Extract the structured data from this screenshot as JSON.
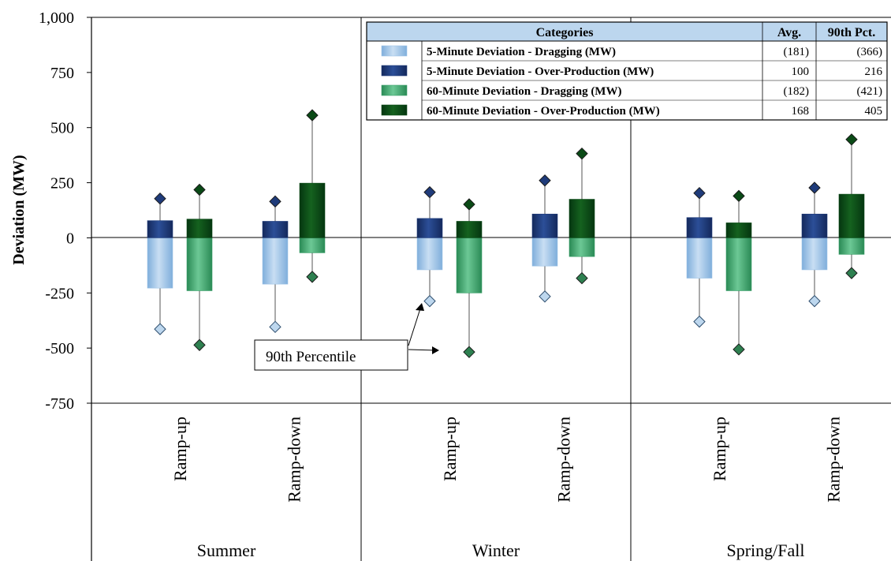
{
  "chart_data": {
    "type": "bar",
    "ylabel": "Deviation (MW)",
    "ylim": [
      -750,
      1000
    ],
    "yticks": [
      "1,000",
      "750",
      "500",
      "250",
      "0",
      "-250",
      "-500",
      "-750"
    ],
    "ytick_values": [
      1000,
      750,
      500,
      250,
      0,
      -250,
      -500,
      -750
    ],
    "groups": [
      {
        "name": "Summer",
        "categories": [
          {
            "name": "Ramp-up",
            "bars": [
              {
                "series": 0,
                "value": -228,
                "p90": -414
              },
              {
                "series": 1,
                "value": 78,
                "p90": 178
              },
              {
                "series": 2,
                "value": -240,
                "p90": -486
              },
              {
                "series": 3,
                "value": 85,
                "p90": 218
              }
            ]
          },
          {
            "name": "Ramp-down",
            "bars": [
              {
                "series": 0,
                "value": -210,
                "p90": -404
              },
              {
                "series": 1,
                "value": 75,
                "p90": 165
              },
              {
                "series": 2,
                "value": -68,
                "p90": -177
              },
              {
                "series": 3,
                "value": 248,
                "p90": 556
              }
            ]
          }
        ]
      },
      {
        "name": "Winter",
        "categories": [
          {
            "name": "Ramp-up",
            "bars": [
              {
                "series": 0,
                "value": -145,
                "p90": -287
              },
              {
                "series": 1,
                "value": 88,
                "p90": 207
              },
              {
                "series": 2,
                "value": -250,
                "p90": -518
              },
              {
                "series": 3,
                "value": 75,
                "p90": 152
              }
            ]
          },
          {
            "name": "Ramp-down",
            "bars": [
              {
                "series": 0,
                "value": -128,
                "p90": -266
              },
              {
                "series": 1,
                "value": 108,
                "p90": 260
              },
              {
                "series": 2,
                "value": -85,
                "p90": -183
              },
              {
                "series": 3,
                "value": 175,
                "p90": 382
              }
            ]
          }
        ]
      },
      {
        "name": "Spring/Fall",
        "categories": [
          {
            "name": "Ramp-up",
            "bars": [
              {
                "series": 0,
                "value": -183,
                "p90": -380
              },
              {
                "series": 1,
                "value": 92,
                "p90": 203
              },
              {
                "series": 2,
                "value": -240,
                "p90": -506
              },
              {
                "series": 3,
                "value": 68,
                "p90": 190
              }
            ]
          },
          {
            "name": "Ramp-down",
            "bars": [
              {
                "series": 0,
                "value": -145,
                "p90": -287
              },
              {
                "series": 1,
                "value": 108,
                "p90": 227
              },
              {
                "series": 2,
                "value": -75,
                "p90": -160
              },
              {
                "series": 3,
                "value": 198,
                "p90": 446
              }
            ]
          }
        ]
      }
    ],
    "series": [
      {
        "name": "5-Minute Deviation - Dragging (MW)",
        "color": "#9dc3e6",
        "marker": "#bdd7ee"
      },
      {
        "name": "5-Minute Deviation - Over-Production (MW)",
        "color": "#1f3b7a",
        "marker": "#1f3b7a"
      },
      {
        "name": "60-Minute Deviation - Dragging (MW)",
        "color": "#3aa06a",
        "marker": "#2e8050"
      },
      {
        "name": "60-Minute Deviation - Over-Production (MW)",
        "color": "#0a4a16",
        "marker": "#0a4a16"
      }
    ],
    "table": {
      "headers": [
        "Categories",
        "Avg.",
        "90th Pct."
      ],
      "rows": [
        {
          "label": "5-Minute Deviation - Dragging (MW)",
          "avg": "(181)",
          "p90": "(366)"
        },
        {
          "label": "5-Minute Deviation - Over-Production (MW)",
          "avg": "100",
          "p90": "216"
        },
        {
          "label": "60-Minute Deviation - Dragging (MW)",
          "avg": "(182)",
          "p90": "(421)"
        },
        {
          "label": "60-Minute Deviation - Over-Production (MW)",
          "avg": "168",
          "p90": "405"
        }
      ]
    },
    "annotation": "90th Percentile",
    "legend_position": "top-right",
    "grid": false
  }
}
